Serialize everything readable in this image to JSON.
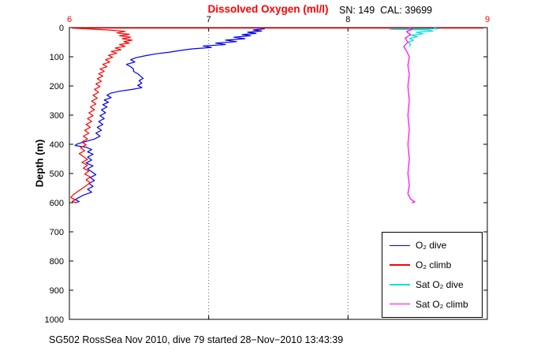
{
  "caption": "SG502 RossSea Nov 2010, dive 79 started 28−Nov−2010 13:43:39",
  "chart_data": {
    "type": "line",
    "title": "Dissolved Oxygen (ml/l)",
    "subtitle": "SN: 149  CAL: 39699",
    "xlabel": "",
    "ylabel": "Depth (m)",
    "xlim": [
      6,
      9
    ],
    "ylim": [
      0,
      1000
    ],
    "y_inverted": true,
    "x_axis_location": "top",
    "x_ticks": [
      6,
      7,
      8,
      9
    ],
    "x_tick_colors": [
      "#ff0000",
      "#000000",
      "#000000",
      "#ff0000"
    ],
    "y_ticks": [
      0,
      100,
      200,
      300,
      400,
      500,
      600,
      700,
      800,
      900,
      1000
    ],
    "xgrid": true,
    "ygrid": false,
    "grid_style": "dotted",
    "legend_position": "lower right",
    "series": [
      {
        "name": "O₂ dive",
        "color": "#0000ee",
        "points": [
          [
            7.36,
            0
          ],
          [
            7.4,
            4
          ],
          [
            7.32,
            8
          ],
          [
            7.38,
            12
          ],
          [
            7.28,
            16
          ],
          [
            7.34,
            20
          ],
          [
            7.24,
            24
          ],
          [
            7.3,
            28
          ],
          [
            7.18,
            33
          ],
          [
            7.26,
            38
          ],
          [
            7.12,
            43
          ],
          [
            7.2,
            48
          ],
          [
            7.05,
            53
          ],
          [
            7.12,
            58
          ],
          [
            6.96,
            63
          ],
          [
            7.02,
            68
          ],
          [
            6.88,
            73
          ],
          [
            6.8,
            78
          ],
          [
            6.72,
            84
          ],
          [
            6.62,
            90
          ],
          [
            6.55,
            96
          ],
          [
            6.48,
            103
          ],
          [
            6.44,
            110
          ],
          [
            6.47,
            118
          ],
          [
            6.41,
            126
          ],
          [
            6.44,
            134
          ],
          [
            6.46,
            142
          ],
          [
            6.46,
            150
          ],
          [
            6.49,
            158
          ],
          [
            6.51,
            166
          ],
          [
            6.53,
            174
          ],
          [
            6.5,
            182
          ],
          [
            6.52,
            190
          ],
          [
            6.49,
            198
          ],
          [
            6.52,
            206
          ],
          [
            6.45,
            212
          ],
          [
            6.36,
            218
          ],
          [
            6.3,
            224
          ],
          [
            6.27,
            232
          ],
          [
            6.3,
            240
          ],
          [
            6.25,
            248
          ],
          [
            6.28,
            256
          ],
          [
            6.24,
            264
          ],
          [
            6.27,
            272
          ],
          [
            6.23,
            282
          ],
          [
            6.26,
            292
          ],
          [
            6.22,
            302
          ],
          [
            6.25,
            312
          ],
          [
            6.21,
            322
          ],
          [
            6.24,
            332
          ],
          [
            6.2,
            342
          ],
          [
            6.23,
            352
          ],
          [
            6.19,
            362
          ],
          [
            6.22,
            372
          ],
          [
            6.18,
            382
          ],
          [
            6.12,
            390
          ],
          [
            6.06,
            398
          ],
          [
            6.04,
            404
          ],
          [
            6.12,
            410
          ],
          [
            6.16,
            418
          ],
          [
            6.13,
            426
          ],
          [
            6.17,
            434
          ],
          [
            6.13,
            444
          ],
          [
            6.16,
            454
          ],
          [
            6.12,
            464
          ],
          [
            6.17,
            474
          ],
          [
            6.13,
            484
          ],
          [
            6.16,
            494
          ],
          [
            6.19,
            504
          ],
          [
            6.15,
            514
          ],
          [
            6.18,
            524
          ],
          [
            6.14,
            534
          ],
          [
            6.17,
            544
          ],
          [
            6.13,
            554
          ],
          [
            6.16,
            564
          ],
          [
            6.1,
            574
          ],
          [
            6.07,
            582
          ],
          [
            6.04,
            590
          ],
          [
            6.07,
            596
          ],
          [
            6.05,
            600
          ]
        ]
      },
      {
        "name": "O₂ climb",
        "color": "#ff0000",
        "points": [
          [
            8.97,
            2
          ],
          [
            6.02,
            2
          ],
          [
            6.28,
            8
          ],
          [
            6.4,
            13
          ],
          [
            6.34,
            18
          ],
          [
            6.43,
            23
          ],
          [
            6.36,
            28
          ],
          [
            6.44,
            33
          ],
          [
            6.38,
            38
          ],
          [
            6.45,
            43
          ],
          [
            6.39,
            48
          ],
          [
            6.43,
            53
          ],
          [
            6.36,
            58
          ],
          [
            6.4,
            64
          ],
          [
            6.33,
            70
          ],
          [
            6.37,
            76
          ],
          [
            6.3,
            82
          ],
          [
            6.34,
            88
          ],
          [
            6.28,
            95
          ],
          [
            6.31,
            102
          ],
          [
            6.26,
            110
          ],
          [
            6.29,
            118
          ],
          [
            6.24,
            126
          ],
          [
            6.27,
            134
          ],
          [
            6.22,
            142
          ],
          [
            6.25,
            150
          ],
          [
            6.21,
            158
          ],
          [
            6.24,
            166
          ],
          [
            6.2,
            175
          ],
          [
            6.23,
            184
          ],
          [
            6.19,
            193
          ],
          [
            6.22,
            202
          ],
          [
            6.18,
            212
          ],
          [
            6.21,
            222
          ],
          [
            6.17,
            232
          ],
          [
            6.2,
            242
          ],
          [
            6.16,
            252
          ],
          [
            6.19,
            262
          ],
          [
            6.15,
            272
          ],
          [
            6.18,
            282
          ],
          [
            6.14,
            292
          ],
          [
            6.17,
            302
          ],
          [
            6.13,
            312
          ],
          [
            6.16,
            322
          ],
          [
            6.12,
            332
          ],
          [
            6.15,
            342
          ],
          [
            6.11,
            352
          ],
          [
            6.14,
            362
          ],
          [
            6.1,
            372
          ],
          [
            6.13,
            382
          ],
          [
            6.09,
            392
          ],
          [
            6.12,
            402
          ],
          [
            6.08,
            412
          ],
          [
            6.11,
            422
          ],
          [
            6.07,
            432
          ],
          [
            6.1,
            442
          ],
          [
            6.13,
            452
          ],
          [
            6.09,
            462
          ],
          [
            6.13,
            472
          ],
          [
            6.1,
            482
          ],
          [
            6.14,
            492
          ],
          [
            6.11,
            502
          ],
          [
            6.15,
            512
          ],
          [
            6.12,
            522
          ],
          [
            6.15,
            532
          ],
          [
            6.12,
            542
          ],
          [
            6.09,
            552
          ],
          [
            6.06,
            562
          ],
          [
            6.03,
            572
          ],
          [
            6.01,
            582
          ],
          [
            6.04,
            590
          ],
          [
            6.02,
            596
          ],
          [
            6.05,
            600
          ]
        ]
      },
      {
        "name": "Sat O₂ dive",
        "color": "#00dede",
        "points": [
          [
            8.62,
            1
          ],
          [
            8.65,
            4
          ],
          [
            8.3,
            6
          ],
          [
            8.58,
            8
          ],
          [
            8.61,
            12
          ],
          [
            8.49,
            16
          ],
          [
            8.54,
            21
          ],
          [
            8.45,
            26
          ],
          [
            8.5,
            31
          ],
          [
            8.44,
            37
          ],
          [
            8.47,
            43
          ],
          [
            8.43,
            50
          ],
          [
            8.45,
            57
          ],
          [
            8.44,
            64
          ]
        ]
      },
      {
        "name": "Sat O₂ climb",
        "color": "#ff00ff",
        "points": [
          [
            8.44,
            0
          ],
          [
            8.46,
            6
          ],
          [
            8.42,
            14
          ],
          [
            8.45,
            24
          ],
          [
            8.41,
            36
          ],
          [
            8.43,
            50
          ],
          [
            8.4,
            65
          ],
          [
            8.42,
            80
          ],
          [
            8.44,
            100
          ],
          [
            8.43,
            130
          ],
          [
            8.44,
            160
          ],
          [
            8.43,
            200
          ],
          [
            8.44,
            250
          ],
          [
            8.43,
            300
          ],
          [
            8.44,
            350
          ],
          [
            8.43,
            400
          ],
          [
            8.44,
            450
          ],
          [
            8.43,
            500
          ],
          [
            8.44,
            540
          ],
          [
            8.43,
            570
          ],
          [
            8.45,
            588
          ],
          [
            8.48,
            597
          ],
          [
            8.46,
            600
          ]
        ]
      }
    ]
  }
}
